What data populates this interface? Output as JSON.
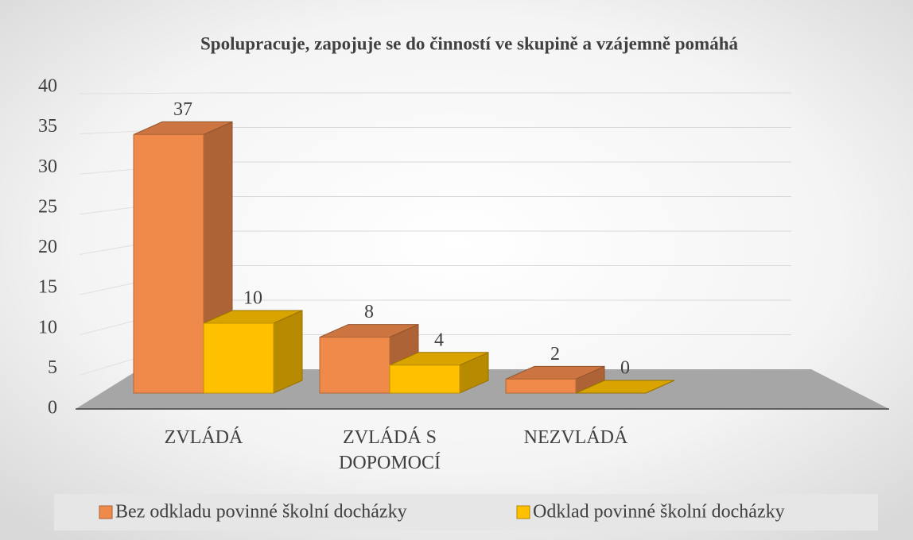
{
  "chart_data": {
    "type": "bar3d",
    "title": "Spolupracuje, zapojuje se do činností ve skupině a vzájemně pomáhá",
    "categories": [
      "ZVLÁDÁ",
      "ZVLÁDÁ S DOPOMOCÍ",
      "NEZVLÁDÁ"
    ],
    "series": [
      {
        "name": "Bez odkladu povinné školní docházky",
        "color": "#f08a4b",
        "values": [
          37,
          8,
          2
        ]
      },
      {
        "name": "Odklad povinné školní docházky",
        "color": "#ffc000",
        "values": [
          10,
          4,
          0
        ]
      }
    ],
    "ylim": [
      0,
      40
    ],
    "yticks": [
      0,
      5,
      10,
      15,
      20,
      25,
      30,
      35,
      40
    ],
    "grid": true,
    "legend": "bottom"
  }
}
